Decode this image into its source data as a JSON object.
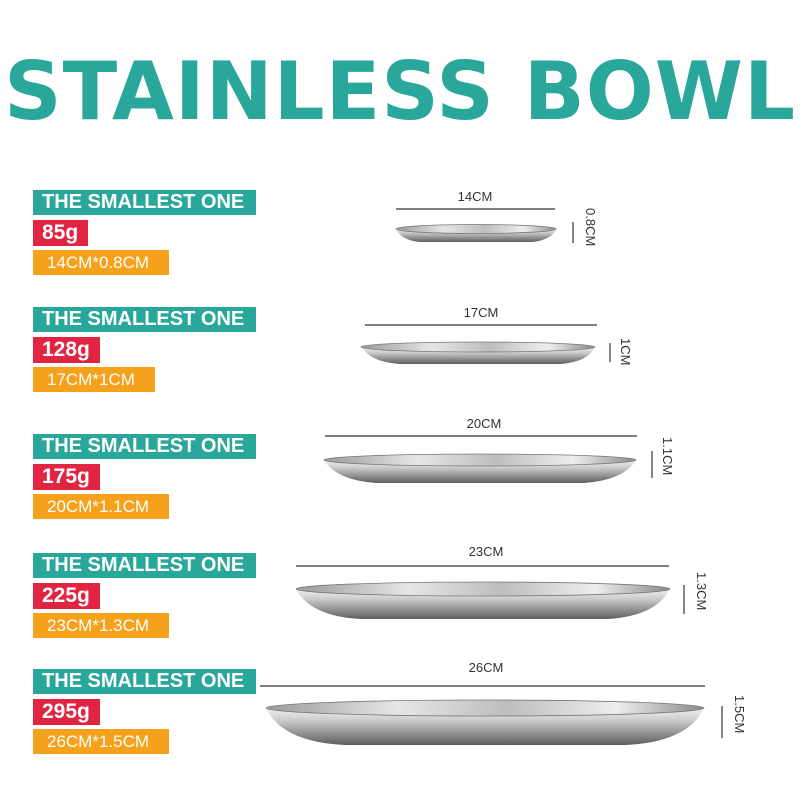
{
  "title": "STAINLESS BOWL",
  "colors": {
    "teal": "#2aa79b",
    "red": "#e02442",
    "orange": "#f6a11b"
  },
  "items": [
    {
      "name": "THE SMALLEST ONE",
      "weight": "85g",
      "size": "14CM*0.8CM",
      "width_label": "14CM",
      "height_label": "0.8CM"
    },
    {
      "name": "THE SMALLEST ONE",
      "weight": "128g",
      "size": "17CM*1CM",
      "width_label": "17CM",
      "height_label": "1CM"
    },
    {
      "name": "THE SMALLEST ONE",
      "weight": "175g",
      "size": "20CM*1.1CM",
      "width_label": "20CM",
      "height_label": "1.1CM"
    },
    {
      "name": "THE SMALLEST ONE",
      "weight": "225g",
      "size": "23CM*1.3CM",
      "width_label": "23CM",
      "height_label": "1.3CM"
    },
    {
      "name": "THE SMALLEST ONE",
      "weight": "295g",
      "size": "26CM*1.5CM",
      "width_label": "26CM",
      "height_label": "1.5CM"
    }
  ]
}
